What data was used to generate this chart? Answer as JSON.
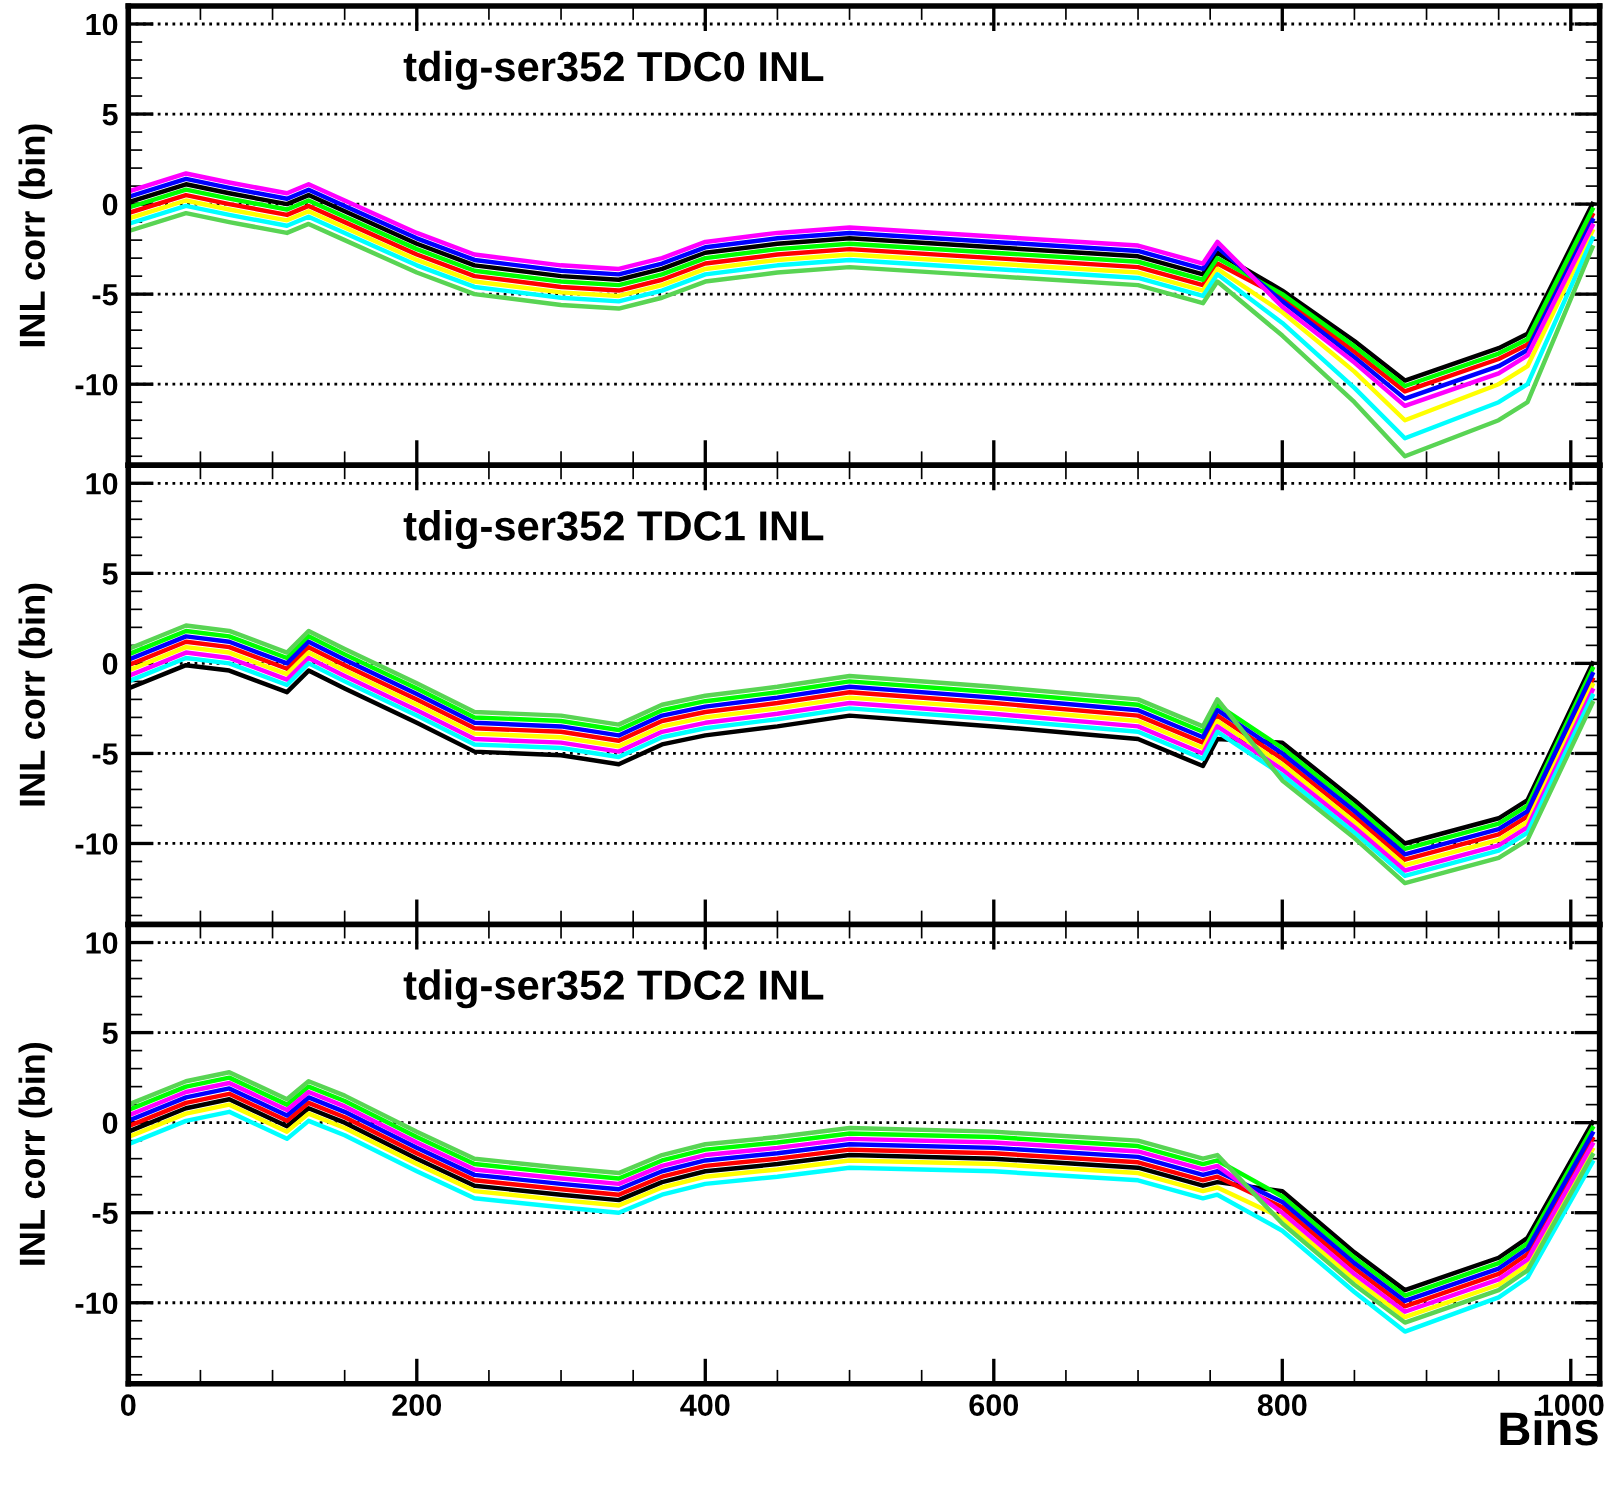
{
  "chart_data": [
    {
      "type": "line",
      "title": "tdig-ser352 TDC0 INL",
      "ylabel": "INL corr (bin)",
      "tick_labels": "y",
      "grid": "y",
      "xlim": [
        0,
        1020
      ],
      "ylim": [
        -14.5,
        11
      ],
      "xticks": [
        0,
        200,
        400,
        600,
        800,
        1000
      ],
      "yticks": [
        -10,
        -5,
        0,
        5,
        10
      ],
      "x": [
        0,
        40,
        70,
        110,
        125,
        150,
        200,
        240,
        300,
        340,
        370,
        400,
        450,
        500,
        600,
        700,
        745,
        755,
        800,
        850,
        885,
        950,
        970,
        1015
      ],
      "series": [
        {
          "color": "#000000",
          "values": [
            0.1,
            1.1,
            0.6,
            0.0,
            0.5,
            -0.4,
            -2.2,
            -3.4,
            -4.0,
            -4.2,
            -3.6,
            -2.7,
            -2.2,
            -1.9,
            -2.4,
            -2.9,
            -3.9,
            -2.7,
            -4.8,
            -7.6,
            -9.8,
            -8.0,
            -7.2,
            0.0
          ]
        },
        {
          "color": "#ff0000",
          "values": [
            -0.5,
            0.5,
            0.0,
            -0.6,
            -0.1,
            -1.0,
            -2.8,
            -4.0,
            -4.6,
            -4.8,
            -4.2,
            -3.3,
            -2.8,
            -2.5,
            -3.0,
            -3.5,
            -4.5,
            -3.3,
            -5.2,
            -8.2,
            -10.4,
            -8.6,
            -7.8,
            -0.6
          ]
        },
        {
          "color": "#00ff00",
          "values": [
            -0.2,
            0.8,
            0.3,
            -0.3,
            0.2,
            -0.7,
            -2.5,
            -3.7,
            -4.3,
            -4.5,
            -3.9,
            -3.0,
            -2.5,
            -2.2,
            -2.7,
            -3.2,
            -4.2,
            -3.0,
            -5.0,
            -7.9,
            -10.1,
            -8.3,
            -7.5,
            -0.3
          ]
        },
        {
          "color": "#0000ff",
          "values": [
            0.4,
            1.4,
            0.9,
            0.3,
            0.8,
            -0.1,
            -1.9,
            -3.1,
            -3.7,
            -3.9,
            -3.3,
            -2.4,
            -1.9,
            -1.6,
            -2.1,
            -2.6,
            -3.6,
            -2.4,
            -5.4,
            -8.5,
            -10.8,
            -9.0,
            -8.1,
            -0.9
          ]
        },
        {
          "color": "#ffff00",
          "values": [
            -0.8,
            0.2,
            -0.3,
            -0.9,
            -0.4,
            -1.3,
            -3.1,
            -4.3,
            -4.9,
            -5.1,
            -4.5,
            -3.6,
            -3.1,
            -2.8,
            -3.3,
            -3.8,
            -4.8,
            -3.6,
            -6.0,
            -9.3,
            -12.0,
            -10.0,
            -9.0,
            -1.5
          ]
        },
        {
          "color": "#ff00ff",
          "values": [
            0.7,
            1.7,
            1.2,
            0.6,
            1.1,
            0.2,
            -1.6,
            -2.8,
            -3.4,
            -3.6,
            -3.0,
            -2.1,
            -1.6,
            -1.3,
            -1.8,
            -2.3,
            -3.3,
            -2.1,
            -5.7,
            -8.8,
            -11.2,
            -9.4,
            -8.4,
            -1.2
          ]
        },
        {
          "color": "#00ffff",
          "values": [
            -1.1,
            -0.1,
            -0.6,
            -1.2,
            -0.7,
            -1.6,
            -3.4,
            -4.6,
            -5.2,
            -5.4,
            -4.8,
            -3.9,
            -3.4,
            -3.1,
            -3.6,
            -4.1,
            -5.1,
            -3.9,
            -6.6,
            -10.2,
            -13.0,
            -11.0,
            -10.0,
            -1.9
          ]
        },
        {
          "color": "#59d454",
          "values": [
            -1.5,
            -0.5,
            -1.0,
            -1.6,
            -1.1,
            -2.0,
            -3.8,
            -5.0,
            -5.6,
            -5.8,
            -5.2,
            -4.3,
            -3.8,
            -3.5,
            -4.0,
            -4.5,
            -5.5,
            -4.3,
            -7.3,
            -11.0,
            -14.0,
            -12.0,
            -11.0,
            -2.4
          ]
        }
      ]
    },
    {
      "type": "line",
      "title": "tdig-ser352 TDC1 INL",
      "ylabel": "INL corr (bin)",
      "tick_labels": "y",
      "grid": "y",
      "xlim": [
        0,
        1020
      ],
      "ylim": [
        -14.5,
        11
      ],
      "xticks": [
        0,
        200,
        400,
        600,
        800,
        1000
      ],
      "yticks": [
        -10,
        -5,
        0,
        5,
        10
      ],
      "x": [
        0,
        40,
        70,
        110,
        125,
        150,
        200,
        240,
        300,
        340,
        370,
        400,
        450,
        500,
        600,
        700,
        745,
        755,
        800,
        850,
        885,
        950,
        970,
        1015
      ],
      "series": [
        {
          "color": "#000000",
          "values": [
            -1.4,
            -0.1,
            -0.4,
            -1.6,
            -0.4,
            -1.4,
            -3.3,
            -4.9,
            -5.1,
            -5.6,
            -4.5,
            -4.0,
            -3.5,
            -2.9,
            -3.5,
            -4.2,
            -5.7,
            -4.2,
            -4.4,
            -7.6,
            -10.0,
            -8.6,
            -7.6,
            0.0
          ]
        },
        {
          "color": "#ff0000",
          "values": [
            -0.1,
            1.2,
            0.9,
            -0.3,
            0.9,
            -0.1,
            -2.0,
            -3.6,
            -3.8,
            -4.3,
            -3.2,
            -2.7,
            -2.2,
            -1.6,
            -2.2,
            -2.9,
            -4.4,
            -2.9,
            -5.3,
            -8.5,
            -10.9,
            -9.5,
            -8.5,
            -0.9
          ]
        },
        {
          "color": "#00ff00",
          "values": [
            0.5,
            1.8,
            1.5,
            0.3,
            1.5,
            0.5,
            -1.4,
            -3.0,
            -3.2,
            -3.7,
            -2.6,
            -2.1,
            -1.6,
            -1.0,
            -1.6,
            -2.3,
            -3.8,
            -2.3,
            -4.7,
            -7.9,
            -10.3,
            -8.9,
            -7.9,
            -0.3
          ]
        },
        {
          "color": "#0000ff",
          "values": [
            0.2,
            1.5,
            1.2,
            0.0,
            1.2,
            0.2,
            -1.7,
            -3.3,
            -3.5,
            -4.0,
            -2.9,
            -2.4,
            -1.9,
            -1.3,
            -1.9,
            -2.6,
            -4.1,
            -2.6,
            -5.0,
            -8.2,
            -10.6,
            -9.2,
            -8.2,
            -0.6
          ]
        },
        {
          "color": "#ffff00",
          "values": [
            -0.4,
            0.9,
            0.6,
            -0.6,
            0.6,
            -0.4,
            -2.3,
            -3.9,
            -4.1,
            -4.6,
            -3.5,
            -3.0,
            -2.5,
            -1.9,
            -2.5,
            -3.2,
            -4.7,
            -3.2,
            -5.6,
            -8.8,
            -11.2,
            -9.8,
            -8.8,
            -1.2
          ]
        },
        {
          "color": "#ff00ff",
          "values": [
            -0.7,
            0.6,
            0.3,
            -0.9,
            0.3,
            -0.7,
            -2.6,
            -4.2,
            -4.4,
            -4.9,
            -3.8,
            -3.3,
            -2.8,
            -2.2,
            -2.8,
            -3.5,
            -5.0,
            -3.5,
            -5.9,
            -9.1,
            -11.5,
            -10.1,
            -9.1,
            -1.5
          ]
        },
        {
          "color": "#00ffff",
          "values": [
            -1.0,
            0.3,
            0.0,
            -1.2,
            0.0,
            -1.0,
            -2.9,
            -4.5,
            -4.7,
            -5.2,
            -4.1,
            -3.6,
            -3.1,
            -2.5,
            -3.1,
            -3.8,
            -5.3,
            -3.8,
            -6.2,
            -9.4,
            -11.8,
            -10.4,
            -9.4,
            -1.8
          ]
        },
        {
          "color": "#59d454",
          "values": [
            0.8,
            2.1,
            1.8,
            0.6,
            1.8,
            0.8,
            -1.1,
            -2.7,
            -2.9,
            -3.4,
            -2.3,
            -1.8,
            -1.3,
            -0.7,
            -1.3,
            -2.0,
            -3.5,
            -2.0,
            -6.5,
            -9.7,
            -12.2,
            -10.8,
            -9.8,
            -2.2
          ]
        }
      ]
    },
    {
      "type": "line",
      "title": "tdig-ser352 TDC2 INL",
      "ylabel": "INL corr (bin)",
      "xlabel": "Bins",
      "grid": "y",
      "xlim": [
        0,
        1020
      ],
      "ylim": [
        -14.5,
        11
      ],
      "xticks": [
        0,
        200,
        400,
        600,
        800,
        1000
      ],
      "yticks": [
        -10,
        -5,
        0,
        5,
        10
      ],
      "x": [
        0,
        40,
        70,
        110,
        125,
        150,
        200,
        240,
        300,
        340,
        370,
        400,
        450,
        500,
        600,
        700,
        745,
        755,
        800,
        850,
        885,
        950,
        970,
        1015
      ],
      "series": [
        {
          "color": "#000000",
          "values": [
            -0.5,
            0.8,
            1.3,
            -0.2,
            0.8,
            0.0,
            -2.0,
            -3.5,
            -4.0,
            -4.3,
            -3.3,
            -2.7,
            -2.3,
            -1.8,
            -2.0,
            -2.5,
            -3.5,
            -3.3,
            -3.8,
            -7.2,
            -9.3,
            -7.5,
            -6.4,
            0.0
          ]
        },
        {
          "color": "#ff0000",
          "values": [
            -0.2,
            1.1,
            1.6,
            0.1,
            1.1,
            0.3,
            -1.7,
            -3.2,
            -3.7,
            -4.0,
            -3.0,
            -2.4,
            -2.0,
            -1.5,
            -1.7,
            -2.2,
            -3.2,
            -3.0,
            -4.7,
            -8.1,
            -10.2,
            -8.4,
            -7.3,
            -0.9
          ]
        },
        {
          "color": "#00ff00",
          "values": [
            0.7,
            2.0,
            2.5,
            1.0,
            2.0,
            1.2,
            -0.8,
            -2.3,
            -2.8,
            -3.1,
            -2.1,
            -1.5,
            -1.1,
            -0.6,
            -0.8,
            -1.3,
            -2.3,
            -2.1,
            -4.1,
            -7.5,
            -9.6,
            -7.8,
            -6.7,
            -0.3
          ]
        },
        {
          "color": "#0000ff",
          "values": [
            0.1,
            1.4,
            1.9,
            0.4,
            1.4,
            0.6,
            -1.4,
            -2.9,
            -3.4,
            -3.7,
            -2.7,
            -2.1,
            -1.7,
            -1.2,
            -1.4,
            -1.9,
            -2.9,
            -2.7,
            -4.4,
            -7.8,
            -9.9,
            -8.1,
            -7.0,
            -0.6
          ]
        },
        {
          "color": "#ffff00",
          "values": [
            -0.8,
            0.5,
            1.0,
            -0.5,
            0.5,
            -0.3,
            -2.3,
            -3.8,
            -4.3,
            -4.6,
            -3.6,
            -3.0,
            -2.6,
            -2.1,
            -2.3,
            -2.8,
            -3.8,
            -3.6,
            -5.3,
            -8.7,
            -10.8,
            -9.0,
            -7.9,
            -1.5
          ]
        },
        {
          "color": "#ff00ff",
          "values": [
            0.4,
            1.7,
            2.2,
            0.7,
            1.7,
            0.9,
            -1.1,
            -2.6,
            -3.1,
            -3.4,
            -2.4,
            -1.8,
            -1.4,
            -0.9,
            -1.1,
            -1.6,
            -2.6,
            -2.4,
            -5.0,
            -8.4,
            -10.5,
            -8.7,
            -7.6,
            -1.2
          ]
        },
        {
          "color": "#00ffff",
          "values": [
            -1.2,
            0.1,
            0.6,
            -0.9,
            0.1,
            -0.7,
            -2.7,
            -4.2,
            -4.7,
            -5.0,
            -4.0,
            -3.4,
            -3.0,
            -2.5,
            -2.7,
            -3.2,
            -4.2,
            -4.0,
            -6.0,
            -9.4,
            -11.6,
            -9.7,
            -8.6,
            -2.2
          ]
        },
        {
          "color": "#59d454",
          "values": [
            1.0,
            2.3,
            2.8,
            1.3,
            2.3,
            1.5,
            -0.5,
            -2.0,
            -2.5,
            -2.8,
            -1.8,
            -1.2,
            -0.8,
            -0.3,
            -0.5,
            -1.0,
            -2.0,
            -1.8,
            -5.6,
            -9.0,
            -11.1,
            -9.3,
            -8.2,
            -1.8
          ]
        }
      ]
    }
  ]
}
